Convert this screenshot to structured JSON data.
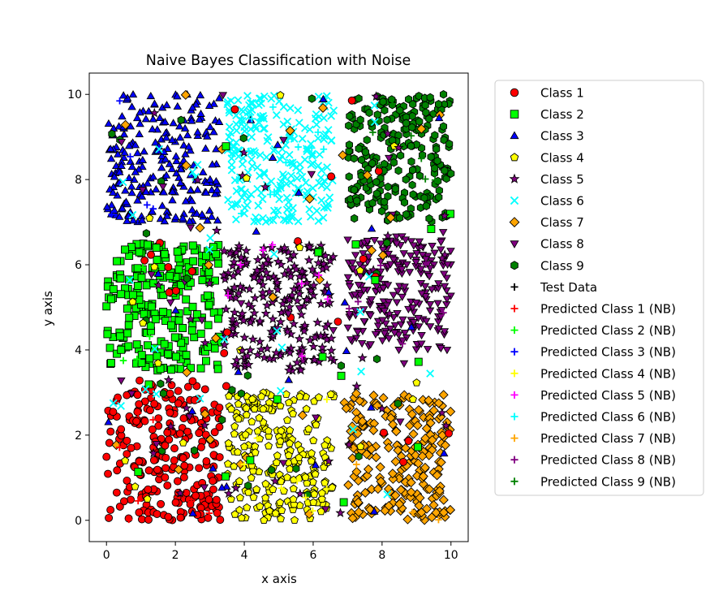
{
  "chart_data": {
    "type": "scatter",
    "title": "Naive Bayes Classification with Noise",
    "xlabel": "x axis",
    "ylabel": "y axis",
    "xlim": [
      -0.5,
      10.5
    ],
    "ylim": [
      -0.5,
      10.5
    ],
    "xticks": [
      0,
      2,
      4,
      6,
      8,
      10
    ],
    "yticks": [
      0,
      2,
      4,
      6,
      8,
      10
    ],
    "grid": false,
    "legend_position": "outside-right",
    "classes": [
      {
        "name": "Class 1",
        "marker": "circle",
        "color": "#ff0000",
        "region": [
          0,
          3.3,
          0,
          3.3
        ],
        "count": 240
      },
      {
        "name": "Class 2",
        "marker": "square",
        "color": "#00ff00",
        "region": [
          0,
          3.3,
          3.5,
          6.5
        ],
        "count": 230
      },
      {
        "name": "Class 3",
        "marker": "triangle-up",
        "color": "#0000ff",
        "region": [
          0,
          3.3,
          7.0,
          10.0
        ],
        "count": 230
      },
      {
        "name": "Class 4",
        "marker": "pentagon",
        "color": "#ffff00",
        "region": [
          3.5,
          6.6,
          0,
          3.0
        ],
        "count": 230
      },
      {
        "name": "Class 5",
        "marker": "star",
        "color": "#800080",
        "region": [
          3.4,
          6.6,
          3.5,
          6.5
        ],
        "count": 230
      },
      {
        "name": "Class 6",
        "marker": "x",
        "color": "#00ffff",
        "region": [
          3.5,
          6.6,
          7.0,
          10.0
        ],
        "count": 230
      },
      {
        "name": "Class 7",
        "marker": "diamond",
        "color": "#ffa500",
        "region": [
          7.0,
          10.0,
          0,
          3.0
        ],
        "count": 230
      },
      {
        "name": "Class 8",
        "marker": "triangle-down",
        "color": "#800080",
        "region": [
          7.0,
          10.0,
          4.0,
          6.7
        ],
        "count": 230
      },
      {
        "name": "Class 9",
        "marker": "hexagon",
        "color": "#008000",
        "region": [
          7.0,
          10.0,
          7.0,
          10.0
        ],
        "count": 230
      }
    ],
    "legend": [
      {
        "label": "Class 1",
        "marker": "circle",
        "color": "#ff0000"
      },
      {
        "label": "Class 2",
        "marker": "square",
        "color": "#00ff00"
      },
      {
        "label": "Class 3",
        "marker": "triangle-up",
        "color": "#0000ff"
      },
      {
        "label": "Class 4",
        "marker": "pentagon",
        "color": "#ffff00"
      },
      {
        "label": "Class 5",
        "marker": "star",
        "color": "#800080"
      },
      {
        "label": "Class 6",
        "marker": "x",
        "color": "#00ffff"
      },
      {
        "label": "Class 7",
        "marker": "diamond",
        "color": "#ffa500"
      },
      {
        "label": "Class 8",
        "marker": "triangle-down",
        "color": "#800080"
      },
      {
        "label": "Class 9",
        "marker": "hexagon",
        "color": "#008000"
      },
      {
        "label": "Test Data",
        "marker": "plus",
        "color": "#000000"
      },
      {
        "label": "Predicted Class 1 (NB)",
        "marker": "plus",
        "color": "#ff0000"
      },
      {
        "label": "Predicted Class 2 (NB)",
        "marker": "plus",
        "color": "#00ff00"
      },
      {
        "label": "Predicted Class 3 (NB)",
        "marker": "plus",
        "color": "#0000ff"
      },
      {
        "label": "Predicted Class 4 (NB)",
        "marker": "plus",
        "color": "#ffff00"
      },
      {
        "label": "Predicted Class 5 (NB)",
        "marker": "plus",
        "color": "#ff00ff"
      },
      {
        "label": "Predicted Class 6 (NB)",
        "marker": "plus",
        "color": "#00ffff"
      },
      {
        "label": "Predicted Class 7 (NB)",
        "marker": "plus",
        "color": "#ffa500"
      },
      {
        "label": "Predicted Class 8 (NB)",
        "marker": "plus",
        "color": "#800080"
      },
      {
        "label": "Predicted Class 9 (NB)",
        "marker": "plus",
        "color": "#008000"
      }
    ],
    "noise_points": 260,
    "test_points": 60
  }
}
